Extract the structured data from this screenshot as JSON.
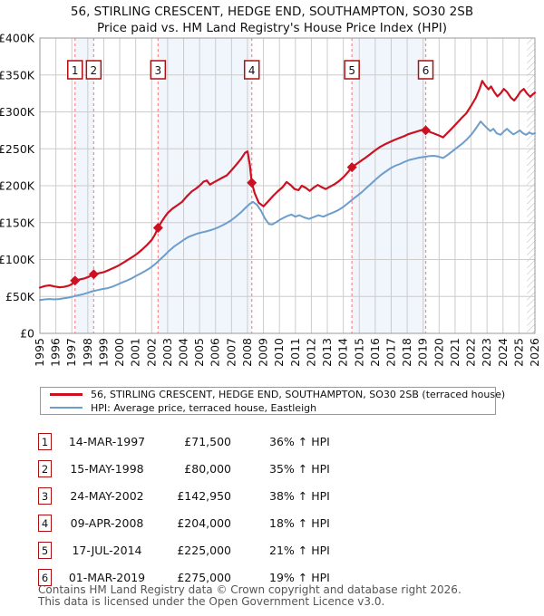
{
  "header": {
    "title": "56, STIRLING CRESCENT, HEDGE END, SOUTHAMPTON, SO30 2SB",
    "subtitle": "Price paid vs. HM Land Registry's House Price Index (HPI)"
  },
  "legend": {
    "items": [
      {
        "label": "56, STIRLING CRESCENT, HEDGE END, SOUTHAMPTON, SO30 2SB (terraced house)",
        "color": "#cc1122"
      },
      {
        "label": "HPI: Average price, terraced house, Eastleigh",
        "color": "#6d9dcb"
      }
    ]
  },
  "table": {
    "rows": [
      {
        "n": "1",
        "date": "14-MAR-1997",
        "price": "£71,500",
        "hpi": "36% ↑ HPI"
      },
      {
        "n": "2",
        "date": "15-MAY-1998",
        "price": "£80,000",
        "hpi": "35% ↑ HPI"
      },
      {
        "n": "3",
        "date": "24-MAY-2002",
        "price": "£142,950",
        "hpi": "38% ↑ HPI"
      },
      {
        "n": "4",
        "date": "09-APR-2008",
        "price": "£204,000",
        "hpi": "18% ↑ HPI"
      },
      {
        "n": "5",
        "date": "17-JUL-2014",
        "price": "£225,000",
        "hpi": "21% ↑ HPI"
      },
      {
        "n": "6",
        "date": "01-MAR-2019",
        "price": "£275,000",
        "hpi": "19% ↑ HPI"
      }
    ]
  },
  "footer": {
    "line1": "Contains HM Land Registry data © Crown copyright and database right 2026.",
    "line2": "This data is licensed under the Open Government Licence v3.0."
  },
  "chart_data": {
    "type": "line",
    "unit": "GBP",
    "x_range": [
      1995,
      2026
    ],
    "ylim": [
      0,
      400000
    ],
    "grid": true,
    "legend_position": "below",
    "hatch_future_start": 2025.5,
    "yticks": [
      {
        "value": 0,
        "label": "£0"
      },
      {
        "value": 50000,
        "label": "£50K"
      },
      {
        "value": 100000,
        "label": "£100K"
      },
      {
        "value": 150000,
        "label": "£150K"
      },
      {
        "value": 200000,
        "label": "£200K"
      },
      {
        "value": 250000,
        "label": "£250K"
      },
      {
        "value": 300000,
        "label": "£300K"
      },
      {
        "value": 350000,
        "label": "£350K"
      },
      {
        "value": 400000,
        "label": "£400K"
      }
    ],
    "xticks": [
      1995,
      1996,
      1997,
      1998,
      1999,
      2000,
      2001,
      2002,
      2003,
      2004,
      2005,
      2006,
      2007,
      2008,
      2009,
      2010,
      2011,
      2012,
      2013,
      2014,
      2015,
      2016,
      2017,
      2018,
      2019,
      2020,
      2021,
      2022,
      2023,
      2024,
      2025,
      2026
    ],
    "colors": {
      "price_line": "#cc1122",
      "hpi_line": "#6d9dcb",
      "sale_dash": "#f28b8b",
      "sale_marker": "#cc1122",
      "sale_box_border": "#aa1111",
      "band": "#f1f5fc",
      "grid": "#cccccc",
      "plot_border": "#999999",
      "hatch": "#b5bac2"
    },
    "shaded_periods": [
      [
        1997.2,
        1998.37
      ],
      [
        2002.4,
        2008.27
      ],
      [
        2014.54,
        2019.16
      ]
    ],
    "sales": [
      {
        "label": "1",
        "date": "14-MAR-1997",
        "year": 1997.2,
        "price": 71500,
        "vs_hpi": "36% ↑ HPI"
      },
      {
        "label": "2",
        "date": "15-MAY-1998",
        "year": 1998.37,
        "price": 80000,
        "vs_hpi": "35% ↑ HPI"
      },
      {
        "label": "3",
        "date": "24-MAY-2002",
        "year": 2002.4,
        "price": 142950,
        "vs_hpi": "38% ↑ HPI"
      },
      {
        "label": "4",
        "date": "09-APR-2008",
        "year": 2008.27,
        "price": 204000,
        "vs_hpi": "18% ↑ HPI"
      },
      {
        "label": "5",
        "date": "17-JUL-2014",
        "year": 2014.54,
        "price": 225000,
        "vs_hpi": "21% ↑ HPI"
      },
      {
        "label": "6",
        "date": "01-MAR-2019",
        "year": 2019.16,
        "price": 275000,
        "vs_hpi": "19% ↑ HPI"
      }
    ],
    "series": [
      {
        "name": "56, STIRLING CRESCENT, HEDGE END, SOUTHAMPTON, SO30 2SB (terraced house)",
        "color": "#cc1122",
        "width": 2.2,
        "points": [
          [
            1995.0,
            62000
          ],
          [
            1995.3,
            64000
          ],
          [
            1995.6,
            65000
          ],
          [
            1995.9,
            63500
          ],
          [
            1996.2,
            62500
          ],
          [
            1996.5,
            63000
          ],
          [
            1996.8,
            64500
          ],
          [
            1997.0,
            66500
          ],
          [
            1997.2,
            71500
          ],
          [
            1997.5,
            73000
          ],
          [
            1997.8,
            74500
          ],
          [
            1998.1,
            77000
          ],
          [
            1998.37,
            80000
          ],
          [
            1998.7,
            81500
          ],
          [
            1999.0,
            83000
          ],
          [
            1999.3,
            85500
          ],
          [
            1999.6,
            88500
          ],
          [
            1999.9,
            91500
          ],
          [
            2000.2,
            95500
          ],
          [
            2000.5,
            99500
          ],
          [
            2000.8,
            103500
          ],
          [
            2001.1,
            108000
          ],
          [
            2001.4,
            113500
          ],
          [
            2001.7,
            119500
          ],
          [
            2002.0,
            126500
          ],
          [
            2002.2,
            133500
          ],
          [
            2002.4,
            142950
          ],
          [
            2002.6,
            150500
          ],
          [
            2002.8,
            157000
          ],
          [
            2003.0,
            163000
          ],
          [
            2003.3,
            169000
          ],
          [
            2003.6,
            173500
          ],
          [
            2003.9,
            178000
          ],
          [
            2004.2,
            185500
          ],
          [
            2004.5,
            192000
          ],
          [
            2004.8,
            196500
          ],
          [
            2005.05,
            201000
          ],
          [
            2005.25,
            205500
          ],
          [
            2005.45,
            207000
          ],
          [
            2005.65,
            201500
          ],
          [
            2005.85,
            204000
          ],
          [
            2006.1,
            207000
          ],
          [
            2006.4,
            210500
          ],
          [
            2006.7,
            214000
          ],
          [
            2007.0,
            221000
          ],
          [
            2007.3,
            228500
          ],
          [
            2007.6,
            236500
          ],
          [
            2007.85,
            244500
          ],
          [
            2008.0,
            246500
          ],
          [
            2008.15,
            228000
          ],
          [
            2008.27,
            204000
          ],
          [
            2008.45,
            190000
          ],
          [
            2008.7,
            177000
          ],
          [
            2009.0,
            172000
          ],
          [
            2009.3,
            179000
          ],
          [
            2009.6,
            186000
          ],
          [
            2009.9,
            192500
          ],
          [
            2010.2,
            198000
          ],
          [
            2010.45,
            205000
          ],
          [
            2010.7,
            201000
          ],
          [
            2010.95,
            195500
          ],
          [
            2011.2,
            194000
          ],
          [
            2011.4,
            200000
          ],
          [
            2011.65,
            197000
          ],
          [
            2011.9,
            193000
          ],
          [
            2012.15,
            197500
          ],
          [
            2012.4,
            201000
          ],
          [
            2012.65,
            198000
          ],
          [
            2012.9,
            195500
          ],
          [
            2013.15,
            198500
          ],
          [
            2013.45,
            202000
          ],
          [
            2013.75,
            206500
          ],
          [
            2014.05,
            212500
          ],
          [
            2014.3,
            218500
          ],
          [
            2014.54,
            225000
          ],
          [
            2014.8,
            229000
          ],
          [
            2015.1,
            233500
          ],
          [
            2015.4,
            238000
          ],
          [
            2015.7,
            243000
          ],
          [
            2016.0,
            248000
          ],
          [
            2016.3,
            252500
          ],
          [
            2016.6,
            256000
          ],
          [
            2016.9,
            259000
          ],
          [
            2017.2,
            262000
          ],
          [
            2017.5,
            264500
          ],
          [
            2017.8,
            267000
          ],
          [
            2018.1,
            270000
          ],
          [
            2018.4,
            272000
          ],
          [
            2018.7,
            274000
          ],
          [
            2019.0,
            276000
          ],
          [
            2019.16,
            275000
          ],
          [
            2019.45,
            272500
          ],
          [
            2019.7,
            270500
          ],
          [
            2020.0,
            268000
          ],
          [
            2020.25,
            265500
          ],
          [
            2020.5,
            271000
          ],
          [
            2020.8,
            277500
          ],
          [
            2021.1,
            284500
          ],
          [
            2021.4,
            291500
          ],
          [
            2021.7,
            298000
          ],
          [
            2022.0,
            308000
          ],
          [
            2022.3,
            319000
          ],
          [
            2022.55,
            332000
          ],
          [
            2022.7,
            342000
          ],
          [
            2022.9,
            335500
          ],
          [
            2023.1,
            330500
          ],
          [
            2023.25,
            334500
          ],
          [
            2023.45,
            327000
          ],
          [
            2023.65,
            321000
          ],
          [
            2023.85,
            325000
          ],
          [
            2024.05,
            331000
          ],
          [
            2024.25,
            327000
          ],
          [
            2024.5,
            319000
          ],
          [
            2024.7,
            315500
          ],
          [
            2024.9,
            321000
          ],
          [
            2025.1,
            327500
          ],
          [
            2025.3,
            331000
          ],
          [
            2025.5,
            325000
          ],
          [
            2025.7,
            320500
          ],
          [
            2025.85,
            323500
          ],
          [
            2026.0,
            326000
          ]
        ]
      },
      {
        "name": "HPI: Average price, terraced house, Eastleigh",
        "color": "#6d9dcb",
        "width": 2.0,
        "points": [
          [
            1995.0,
            45000
          ],
          [
            1995.3,
            46000
          ],
          [
            1995.6,
            46500
          ],
          [
            1995.9,
            46000
          ],
          [
            1996.2,
            46500
          ],
          [
            1996.5,
            47500
          ],
          [
            1996.8,
            48500
          ],
          [
            1997.1,
            50000
          ],
          [
            1997.4,
            51500
          ],
          [
            1997.7,
            53000
          ],
          [
            1998.0,
            55000
          ],
          [
            1998.3,
            57000
          ],
          [
            1998.6,
            58500
          ],
          [
            1998.9,
            60000
          ],
          [
            1999.2,
            61000
          ],
          [
            1999.5,
            63000
          ],
          [
            1999.8,
            65500
          ],
          [
            2000.1,
            68500
          ],
          [
            2000.4,
            71000
          ],
          [
            2000.7,
            74000
          ],
          [
            2001.0,
            77500
          ],
          [
            2001.3,
            81000
          ],
          [
            2001.6,
            84500
          ],
          [
            2001.9,
            88500
          ],
          [
            2002.2,
            93500
          ],
          [
            2002.5,
            99500
          ],
          [
            2002.8,
            105500
          ],
          [
            2003.1,
            112000
          ],
          [
            2003.4,
            117500
          ],
          [
            2003.7,
            122000
          ],
          [
            2004.0,
            126500
          ],
          [
            2004.3,
            130500
          ],
          [
            2004.6,
            133000
          ],
          [
            2004.9,
            135500
          ],
          [
            2005.2,
            137000
          ],
          [
            2005.5,
            138500
          ],
          [
            2005.8,
            140500
          ],
          [
            2006.1,
            143000
          ],
          [
            2006.4,
            146000
          ],
          [
            2006.7,
            149500
          ],
          [
            2007.0,
            153500
          ],
          [
            2007.3,
            158500
          ],
          [
            2007.6,
            164000
          ],
          [
            2007.9,
            170500
          ],
          [
            2008.15,
            175500
          ],
          [
            2008.35,
            178000
          ],
          [
            2008.6,
            174000
          ],
          [
            2008.85,
            166000
          ],
          [
            2009.1,
            155500
          ],
          [
            2009.35,
            148000
          ],
          [
            2009.55,
            147500
          ],
          [
            2009.75,
            150000
          ],
          [
            2010.0,
            153500
          ],
          [
            2010.25,
            156500
          ],
          [
            2010.5,
            159000
          ],
          [
            2010.75,
            161000
          ],
          [
            2011.0,
            158000
          ],
          [
            2011.25,
            160000
          ],
          [
            2011.55,
            157000
          ],
          [
            2011.85,
            155000
          ],
          [
            2012.15,
            157500
          ],
          [
            2012.45,
            160000
          ],
          [
            2012.75,
            158000
          ],
          [
            2013.05,
            161000
          ],
          [
            2013.35,
            163500
          ],
          [
            2013.65,
            166500
          ],
          [
            2013.95,
            170500
          ],
          [
            2014.25,
            175500
          ],
          [
            2014.55,
            181000
          ],
          [
            2014.85,
            186000
          ],
          [
            2015.15,
            191000
          ],
          [
            2015.45,
            197000
          ],
          [
            2015.75,
            203000
          ],
          [
            2016.05,
            209000
          ],
          [
            2016.35,
            214500
          ],
          [
            2016.65,
            219000
          ],
          [
            2016.95,
            223500
          ],
          [
            2017.25,
            227000
          ],
          [
            2017.55,
            229500
          ],
          [
            2017.85,
            232500
          ],
          [
            2018.15,
            235000
          ],
          [
            2018.45,
            236500
          ],
          [
            2018.75,
            238000
          ],
          [
            2019.05,
            239000
          ],
          [
            2019.35,
            240000
          ],
          [
            2019.65,
            240500
          ],
          [
            2019.95,
            239500
          ],
          [
            2020.25,
            237500
          ],
          [
            2020.55,
            242000
          ],
          [
            2020.85,
            247000
          ],
          [
            2021.15,
            252000
          ],
          [
            2021.45,
            257000
          ],
          [
            2021.75,
            263000
          ],
          [
            2022.05,
            270000
          ],
          [
            2022.35,
            279000
          ],
          [
            2022.6,
            287000
          ],
          [
            2022.8,
            282500
          ],
          [
            2023.0,
            278000
          ],
          [
            2023.2,
            274000
          ],
          [
            2023.4,
            277000
          ],
          [
            2023.6,
            271000
          ],
          [
            2023.85,
            269000
          ],
          [
            2024.05,
            273500
          ],
          [
            2024.25,
            277000
          ],
          [
            2024.45,
            273000
          ],
          [
            2024.65,
            269500
          ],
          [
            2024.85,
            272000
          ],
          [
            2025.05,
            275000
          ],
          [
            2025.25,
            271000
          ],
          [
            2025.45,
            269000
          ],
          [
            2025.65,
            272000
          ],
          [
            2025.85,
            270000
          ],
          [
            2026.0,
            271000
          ]
        ]
      }
    ]
  }
}
